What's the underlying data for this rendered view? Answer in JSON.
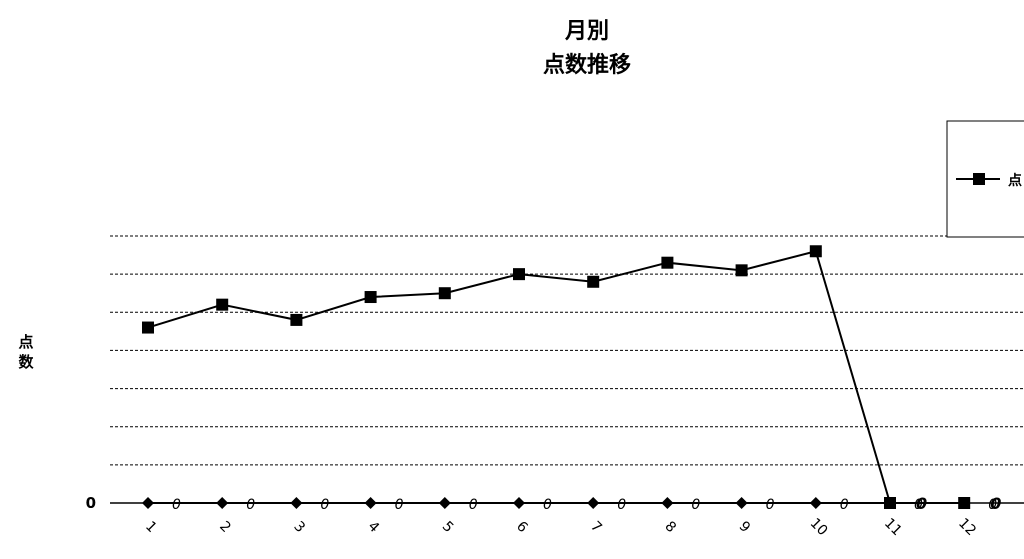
{
  "chart_data": {
    "type": "line",
    "title": [
      "月別",
      "点数推移"
    ],
    "ylabel": "点数",
    "xlabel": "",
    "categories": [
      "1",
      "2",
      "3",
      "4",
      "5",
      "6",
      "7",
      "8",
      "9",
      "10",
      "11",
      "12"
    ],
    "y_ticks": [
      "0"
    ],
    "ylim": [
      0,
      7
    ],
    "grid": "horizontal-dashed",
    "legend_position": "top-right",
    "legend": [
      {
        "name": "点",
        "marker": "square"
      }
    ],
    "series": [
      {
        "name": "点",
        "marker": "square",
        "color": "#000000",
        "values": [
          4.6,
          5.2,
          4.8,
          5.4,
          5.5,
          6.0,
          5.8,
          6.3,
          6.1,
          6.6,
          0,
          0
        ],
        "labels": [
          "",
          "",
          "",
          "",
          "",
          "",
          "",
          "",
          "",
          "",
          "0",
          "0"
        ]
      },
      {
        "name": "",
        "marker": "diamond",
        "color": "#000000",
        "values": [
          0,
          0,
          0,
          0,
          0,
          0,
          0,
          0,
          0,
          0,
          0,
          0
        ],
        "labels": [
          "0",
          "0",
          "0",
          "0",
          "0",
          "0",
          "0",
          "0",
          "0",
          "0",
          "0",
          "0"
        ]
      }
    ]
  }
}
